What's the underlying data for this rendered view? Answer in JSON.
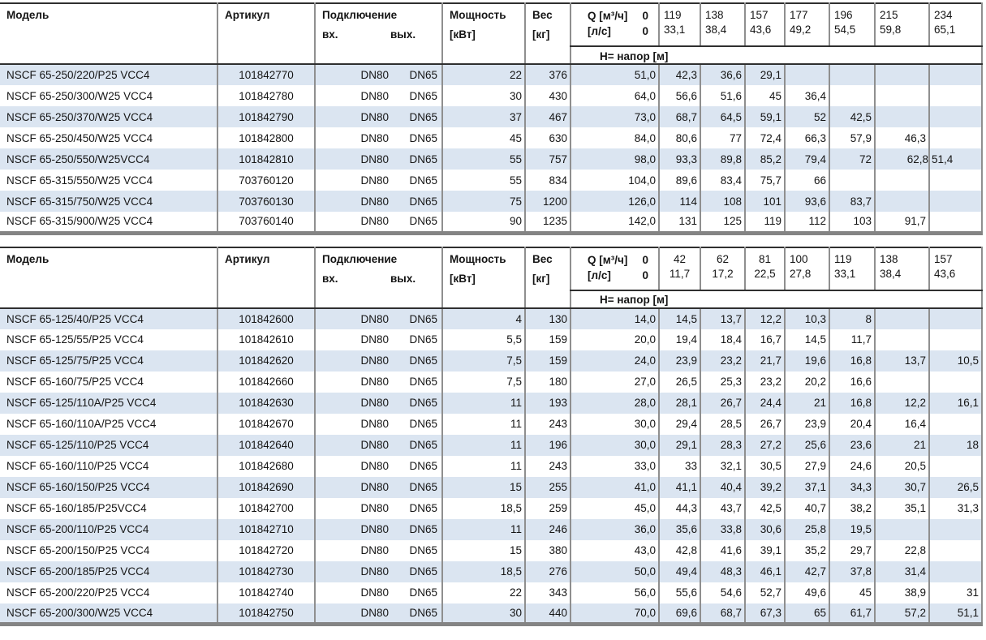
{
  "colors": {
    "row_stripe": "#dbe5f1",
    "grid_line": "#8f8f8f",
    "header_rule": "#2f2f2f",
    "bottom_bar": "#848484"
  },
  "tables": [
    {
      "header": {
        "model": "Модель",
        "article": "Артикул",
        "connection": "Подключение",
        "connection_in": "вх.",
        "connection_out": "вых.",
        "power_line1": "Мощность",
        "power_line2": "[кВт]",
        "weight_line1": "Вес",
        "weight_line2": "[кг]",
        "q_unit_m3h": "Q [м³/ч]",
        "q_zero_m3h": "0",
        "q_unit_ls": "[л/с]",
        "q_zero_ls": "0",
        "h_label": "Н= напор [м]"
      },
      "q_columns": [
        {
          "m3h": "119",
          "ls": "33,1"
        },
        {
          "m3h": "138",
          "ls": "38,4"
        },
        {
          "m3h": "157",
          "ls": "43,6"
        },
        {
          "m3h": "177",
          "ls": "49,2"
        },
        {
          "m3h": "196",
          "ls": "54,5"
        },
        {
          "m3h": "215",
          "ls": "59,8"
        },
        {
          "m3h": "234",
          "ls": "65,1"
        }
      ],
      "rows": [
        {
          "model": "NSCF 65-250/220/P25 VCC4",
          "article": "101842770",
          "dn_in": "DN80",
          "dn_out": "DN65",
          "power": "22",
          "weight": "376",
          "h": [
            "51,0",
            "42,3",
            "36,6",
            "29,1",
            "",
            "",
            "",
            ""
          ]
        },
        {
          "model": "NSCF 65-250/300/W25 VCC4",
          "article": "101842780",
          "dn_in": "DN80",
          "dn_out": "DN65",
          "power": "30",
          "weight": "430",
          "h": [
            "64,0",
            "56,6",
            "51,6",
            "45",
            "36,4",
            "",
            "",
            ""
          ]
        },
        {
          "model": "NSCF 65-250/370/W25 VCC4",
          "article": "101842790",
          "dn_in": "DN80",
          "dn_out": "DN65",
          "power": "37",
          "weight": "467",
          "h": [
            "73,0",
            "68,7",
            "64,5",
            "59,1",
            "52",
            "42,5",
            "",
            ""
          ]
        },
        {
          "model": "NSCF 65-250/450/W25 VCC4",
          "article": "101842800",
          "dn_in": "DN80",
          "dn_out": "DN65",
          "power": "45",
          "weight": "630",
          "h": [
            "84,0",
            "80,6",
            "77",
            "72,4",
            "66,3",
            "57,9",
            "46,3",
            ""
          ]
        },
        {
          "model": "NSCF 65-250/550/W25VCC4",
          "article": "101842810",
          "dn_in": "DN80",
          "dn_out": "DN65",
          "power": "55",
          "weight": "757",
          "h": [
            "98,0",
            "93,3",
            "89,8",
            "85,2",
            "79,4",
            "72",
            "62,8",
            "51,4"
          ],
          "h_overrides": {
            "6": "flush",
            "7": "left"
          }
        },
        {
          "model": "NSCF 65-315/550/W25 VCC4",
          "article": "703760120",
          "dn_in": "DN80",
          "dn_out": "DN65",
          "power": "55",
          "weight": "834",
          "h": [
            "104,0",
            "89,6",
            "83,4",
            "75,7",
            "66",
            "",
            "",
            ""
          ]
        },
        {
          "model": "NSCF 65-315/750/W25 VCC4",
          "article": "703760130",
          "dn_in": "DN80",
          "dn_out": "DN65",
          "power": "75",
          "weight": "1200",
          "h": [
            "126,0",
            "114",
            "108",
            "101",
            "93,6",
            "83,7",
            "",
            ""
          ]
        },
        {
          "model": "NSCF 65-315/900/W25 VCC4",
          "article": "703760140",
          "dn_in": "DN80",
          "dn_out": "DN65",
          "power": "90",
          "weight": "1235",
          "h": [
            "142,0",
            "131",
            "125",
            "119",
            "112",
            "103",
            "91,7",
            ""
          ]
        }
      ]
    },
    {
      "header": {
        "model": "Модель",
        "article": "Артикул",
        "connection": "Подключение",
        "connection_in": "вх.",
        "connection_out": "вых.",
        "power_line1": "Мощность",
        "power_line2": "[кВт]",
        "weight_line1": "Вес",
        "weight_line2": "[кг]",
        "q_unit_m3h": "Q [м³/ч]",
        "q_zero_m3h": "0",
        "q_unit_ls": "[л/с]",
        "q_zero_ls": "0",
        "h_label": "Н= напор [м]"
      },
      "q_columns": [
        {
          "m3h": "42",
          "ls": "11,7"
        },
        {
          "m3h": "62",
          "ls": "17,2"
        },
        {
          "m3h": "81",
          "ls": "22,5"
        },
        {
          "m3h": "100",
          "ls": "27,8"
        },
        {
          "m3h": "119",
          "ls": "33,1"
        },
        {
          "m3h": "138",
          "ls": "38,4"
        },
        {
          "m3h": "157",
          "ls": "43,6"
        }
      ],
      "rows": [
        {
          "model": "NSCF 65-125/40/P25 VCC4",
          "article": "101842600",
          "dn_in": "DN80",
          "dn_out": "DN65",
          "power": "4",
          "weight": "130",
          "h": [
            "14,0",
            "14,5",
            "13,7",
            "12,2",
            "10,3",
            "8",
            "",
            ""
          ]
        },
        {
          "model": "NSCF 65-125/55/P25 VCC4",
          "article": "101842610",
          "dn_in": "DN80",
          "dn_out": "DN65",
          "power": "5,5",
          "weight": "159",
          "h": [
            "20,0",
            "19,4",
            "18,4",
            "16,7",
            "14,5",
            "11,7",
            "",
            ""
          ]
        },
        {
          "model": "NSCF 65-125/75/P25 VCC4",
          "article": "101842620",
          "dn_in": "DN80",
          "dn_out": "DN65",
          "power": "7,5",
          "weight": "159",
          "h": [
            "24,0",
            "23,9",
            "23,2",
            "21,7",
            "19,6",
            "16,8",
            "13,7",
            "10,5"
          ]
        },
        {
          "model": "NSCF 65-160/75/P25 VCC4",
          "article": "101842660",
          "dn_in": "DN80",
          "dn_out": "DN65",
          "power": "7,5",
          "weight": "180",
          "h": [
            "27,0",
            "26,5",
            "25,3",
            "23,2",
            "20,2",
            "16,6",
            "",
            ""
          ]
        },
        {
          "model": "NSCF 65-125/110A/P25 VCC4",
          "article": "101842630",
          "dn_in": "DN80",
          "dn_out": "DN65",
          "power": "11",
          "weight": "193",
          "h": [
            "28,0",
            "28,1",
            "26,7",
            "24,4",
            "21",
            "16,8",
            "12,2",
            "16,1"
          ]
        },
        {
          "model": "NSCF 65-160/110A/P25 VCC4",
          "article": "101842670",
          "dn_in": "DN80",
          "dn_out": "DN65",
          "power": "11",
          "weight": "243",
          "h": [
            "30,0",
            "29,4",
            "28,5",
            "26,7",
            "23,9",
            "20,4",
            "16,4",
            ""
          ]
        },
        {
          "model": "NSCF 65-125/110/P25 VCC4",
          "article": "101842640",
          "dn_in": "DN80",
          "dn_out": "DN65",
          "power": "11",
          "weight": "196",
          "h": [
            "30,0",
            "29,1",
            "28,3",
            "27,2",
            "25,6",
            "23,6",
            "21",
            "18"
          ]
        },
        {
          "model": "NSCF 65-160/110/P25 VCC4",
          "article": "101842680",
          "dn_in": "DN80",
          "dn_out": "DN65",
          "power": "11",
          "weight": "243",
          "h": [
            "33,0",
            "33",
            "32,1",
            "30,5",
            "27,9",
            "24,6",
            "20,5",
            ""
          ]
        },
        {
          "model": "NSCF 65-160/150/P25 VCC4",
          "article": "101842690",
          "dn_in": "DN80",
          "dn_out": "DN65",
          "power": "15",
          "weight": "255",
          "h": [
            "41,0",
            "41,1",
            "40,4",
            "39,2",
            "37,1",
            "34,3",
            "30,7",
            "26,5"
          ]
        },
        {
          "model": "NSCF 65-160/185/P25VCC4",
          "article": "101842700",
          "dn_in": "DN80",
          "dn_out": "DN65",
          "power": "18,5",
          "weight": "259",
          "h": [
            "45,0",
            "44,3",
            "43,7",
            "42,5",
            "40,7",
            "38,2",
            "35,1",
            "31,3"
          ]
        },
        {
          "model": "NSCF 65-200/110/P25 VCC4",
          "article": "101842710",
          "dn_in": "DN80",
          "dn_out": "DN65",
          "power": "11",
          "weight": "246",
          "h": [
            "36,0",
            "35,6",
            "33,8",
            "30,6",
            "25,8",
            "19,5",
            "",
            ""
          ]
        },
        {
          "model": "NSCF 65-200/150/P25 VCC4",
          "article": "101842720",
          "dn_in": "DN80",
          "dn_out": "DN65",
          "power": "15",
          "weight": "380",
          "h": [
            "43,0",
            "42,8",
            "41,6",
            "39,1",
            "35,2",
            "29,7",
            "22,8",
            ""
          ]
        },
        {
          "model": "NSCF 65-200/185/P25 VCC4",
          "article": "101842730",
          "dn_in": "DN80",
          "dn_out": "DN65",
          "power": "18,5",
          "weight": "276",
          "h": [
            "50,0",
            "49,4",
            "48,3",
            "46,1",
            "42,7",
            "37,8",
            "31,4",
            ""
          ]
        },
        {
          "model": "NSCF 65-200/220/P25 VCC4",
          "article": "101842740",
          "dn_in": "DN80",
          "dn_out": "DN65",
          "power": "22",
          "weight": "343",
          "h": [
            "56,0",
            "55,6",
            "54,6",
            "52,7",
            "49,6",
            "45",
            "38,9",
            "31"
          ]
        },
        {
          "model": "NSCF 65-200/300/W25 VCC4",
          "article": "101842750",
          "dn_in": "DN80",
          "dn_out": "DN65",
          "power": "30",
          "weight": "440",
          "h": [
            "70,0",
            "69,6",
            "68,7",
            "67,3",
            "65",
            "61,7",
            "57,2",
            "51,1"
          ]
        }
      ]
    }
  ]
}
